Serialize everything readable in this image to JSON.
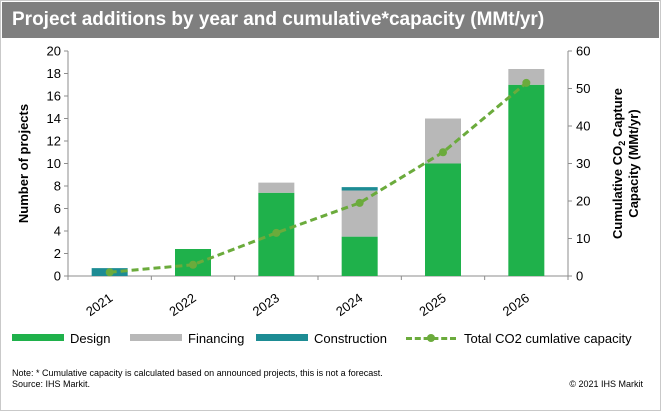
{
  "title": "Project additions by year and cumulative*capacity (MMt/yr)",
  "note": "Note: * Cumulative capacity is calculated based on announced projects, this is not a forecast.",
  "source": "Source: IHS Markit.",
  "copyright": "© 2021 IHS Markit",
  "colors": {
    "design": "#1fb14b",
    "financing": "#b8b8b8",
    "construction": "#1d8c94",
    "line": "#6bab3c",
    "title_bar": "#7f7f7f"
  },
  "legend": {
    "design": "Design",
    "financing": "Financing",
    "construction": "Construction",
    "line": "Total CO2 cumlative capacity"
  },
  "chart_data": {
    "type": "bar",
    "stacked": true,
    "categories": [
      "2021",
      "2022",
      "2023",
      "2024",
      "2025",
      "2026"
    ],
    "series": [
      {
        "name": "Design",
        "values": [
          0,
          2.4,
          7.4,
          3.5,
          10,
          17
        ]
      },
      {
        "name": "Financing",
        "values": [
          0,
          0,
          0.9,
          4.1,
          4,
          1.4
        ]
      },
      {
        "name": "Construction",
        "values": [
          0.7,
          0,
          0,
          0.3,
          0,
          0
        ]
      }
    ],
    "line_series": {
      "name": "Total CO2 cumlative capacity",
      "axis": "right",
      "values": [
        1,
        3,
        11.5,
        19.5,
        33,
        51.5
      ]
    },
    "ylabel": "Number of projects",
    "ylabel_right_line1": "Cumulative CO",
    "ylabel_right_sub": "2",
    "ylabel_right_line1_end": " Capture",
    "ylabel_right_line2": "Capacity (MMt/yr)",
    "ylim": [
      0,
      20
    ],
    "y_ticks": [
      "0",
      "2",
      "4",
      "6",
      "8",
      "10",
      "12",
      "14",
      "16",
      "18",
      "20"
    ],
    "y2lim": [
      0,
      60
    ],
    "y2_ticks": [
      "0",
      "10",
      "20",
      "30",
      "40",
      "50",
      "60"
    ],
    "grid": false,
    "legend_position": "bottom"
  }
}
